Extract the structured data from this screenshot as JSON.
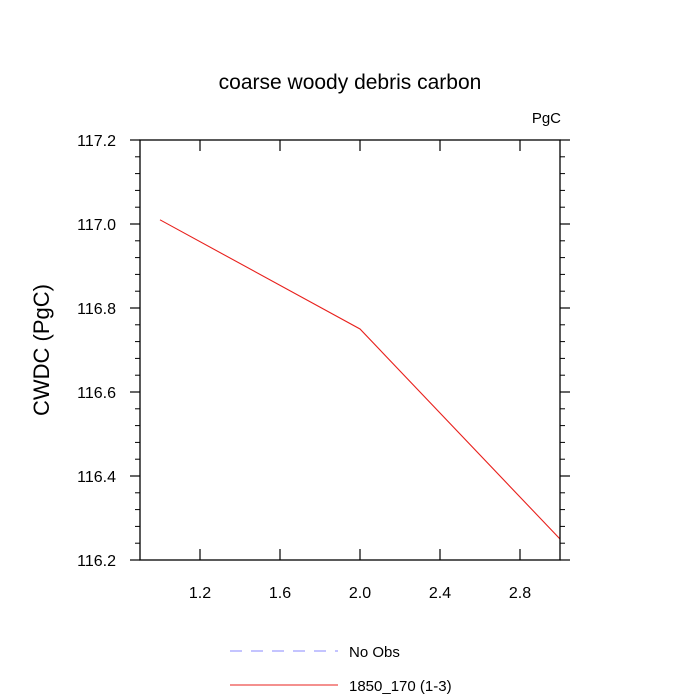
{
  "chart_data": {
    "type": "line",
    "title": "coarse woody debris carbon",
    "units_label": "PgC",
    "ylabel": "CWDC  (PgC)",
    "xlabel": "",
    "xlim": [
      0.9,
      3.0
    ],
    "ylim": [
      116.2,
      117.2
    ],
    "x_ticks": [
      1.2,
      1.6,
      2.0,
      2.4,
      2.8
    ],
    "x_tick_labels": [
      "1.2",
      "1.6",
      "2.0",
      "2.4",
      "2.8"
    ],
    "y_ticks": [
      116.2,
      116.4,
      116.6,
      116.8,
      117.0,
      117.2
    ],
    "y_tick_labels": [
      "116.2",
      "116.4",
      "116.6",
      "116.8",
      "117.0",
      "117.2"
    ],
    "grid": false,
    "legend_position": "bottom",
    "series": [
      {
        "name": "1850_170 (1-3)",
        "color": "#e8201c",
        "dash": "solid",
        "x": [
          1.0,
          2.0,
          3.0
        ],
        "y": [
          117.01,
          116.75,
          116.25
        ]
      }
    ],
    "legend": [
      {
        "label": "No Obs",
        "color": "#8a8aff",
        "dash": "dashed"
      },
      {
        "label": "1850_170 (1-3)",
        "color": "#e8201c",
        "dash": "solid"
      }
    ]
  }
}
